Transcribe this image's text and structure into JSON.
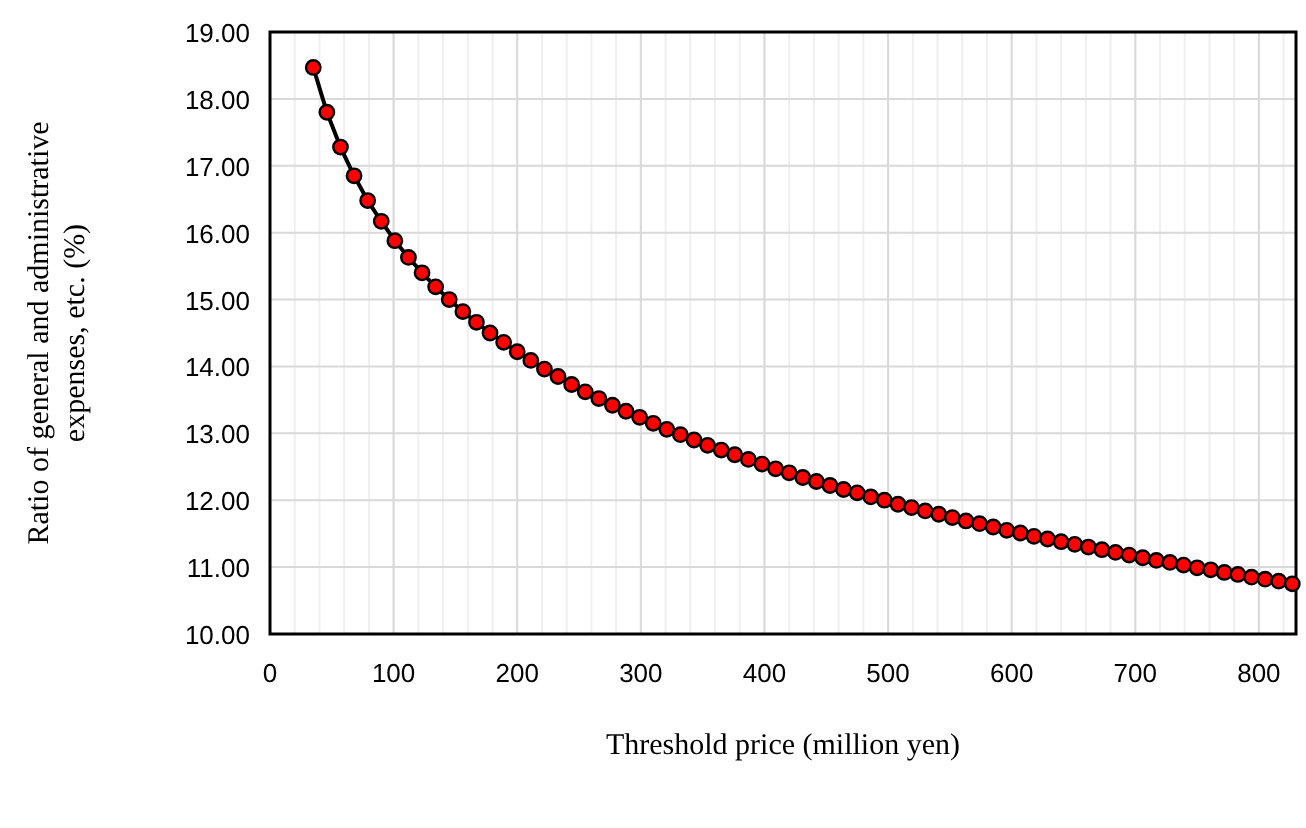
{
  "chart_data": {
    "type": "line",
    "xlabel": "Threshold price (million yen)",
    "ylabel": "Ratio of general and administrative expenses, etc. (%)",
    "xlim": [
      0,
      830
    ],
    "ylim": [
      10,
      19
    ],
    "xticks": [
      0,
      100,
      200,
      300,
      400,
      500,
      600,
      700,
      800
    ],
    "yticks": [
      {
        "value": 10,
        "label": "10.00"
      },
      {
        "value": 11,
        "label": "11.00"
      },
      {
        "value": 12,
        "label": "12.00"
      },
      {
        "value": 13,
        "label": "13.00"
      },
      {
        "value": 14,
        "label": "14.00"
      },
      {
        "value": 15,
        "label": "15.00"
      },
      {
        "value": 16,
        "label": "16.00"
      },
      {
        "value": 17,
        "label": "17.00"
      },
      {
        "value": 18,
        "label": "18.00"
      },
      {
        "value": 19,
        "label": "19.00"
      }
    ],
    "grid": true,
    "marker": "circle",
    "line_style": "solid",
    "x": [
      35,
      46,
      57,
      68,
      79,
      90,
      101,
      112,
      123,
      134,
      145,
      156,
      167,
      178,
      189,
      200,
      211,
      222,
      233,
      244,
      255,
      266,
      277,
      288,
      299,
      310,
      321,
      332,
      343,
      354,
      365,
      376,
      387,
      398,
      409,
      420,
      431,
      442,
      453,
      464,
      475,
      486,
      497,
      508,
      519,
      530,
      541,
      552,
      563,
      574,
      585,
      596,
      607,
      618,
      629,
      640,
      651,
      662,
      673,
      684,
      695,
      706,
      717,
      728,
      739,
      750,
      761,
      772,
      783,
      794,
      805,
      816,
      827
    ],
    "series": [
      {
        "color": "#ff0000",
        "values": [
          18.47,
          17.8,
          17.28,
          16.85,
          16.48,
          16.17,
          15.88,
          15.63,
          15.4,
          15.19,
          15.0,
          14.82,
          14.66,
          14.5,
          14.36,
          14.22,
          14.09,
          13.96,
          13.85,
          13.73,
          13.62,
          13.52,
          13.42,
          13.33,
          13.24,
          13.15,
          13.06,
          12.98,
          12.9,
          12.82,
          12.75,
          12.68,
          12.61,
          12.54,
          12.47,
          12.41,
          12.34,
          12.28,
          12.22,
          12.16,
          12.11,
          12.05,
          12.0,
          11.94,
          11.89,
          11.84,
          11.79,
          11.74,
          11.69,
          11.65,
          11.6,
          11.55,
          11.51,
          11.46,
          11.42,
          11.38,
          11.34,
          11.3,
          11.26,
          11.22,
          11.18,
          11.14,
          11.1,
          11.07,
          11.03,
          10.99,
          10.96,
          10.92,
          10.89,
          10.85,
          10.82,
          10.79,
          10.75
        ]
      }
    ]
  }
}
